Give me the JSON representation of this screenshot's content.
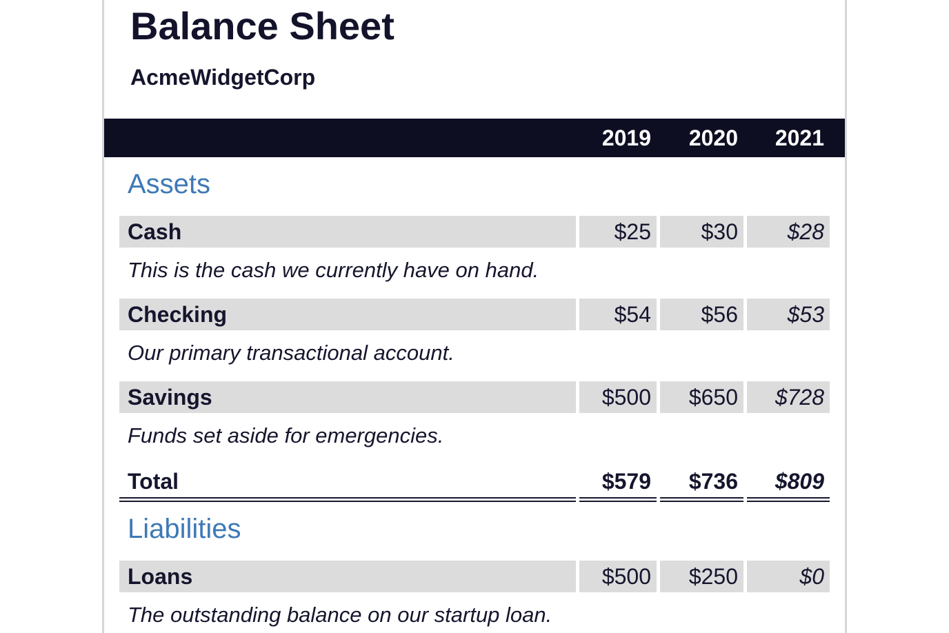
{
  "header": {
    "title": "Balance Sheet",
    "company": "AcmeWidgetCorp"
  },
  "table": {
    "years": [
      "2019",
      "2020",
      "2021"
    ],
    "sections": [
      {
        "name": "Assets",
        "rows": [
          {
            "label": "Cash",
            "values": [
              "$25",
              "$30",
              "$28"
            ],
            "description": "This is the cash we currently have on hand."
          },
          {
            "label": "Checking",
            "values": [
              "$54",
              "$56",
              "$53"
            ],
            "description": "Our primary transactional account."
          },
          {
            "label": "Savings",
            "values": [
              "$500",
              "$650",
              "$728"
            ],
            "description": "Funds set aside for emergencies."
          }
        ],
        "total": {
          "label": "Total",
          "values": [
            "$579",
            "$736",
            "$809"
          ]
        }
      },
      {
        "name": "Liabilities",
        "rows": [
          {
            "label": "Loans",
            "values": [
              "$500",
              "$250",
              "$0"
            ],
            "description": "The outstanding balance on our startup loan."
          }
        ]
      }
    ]
  },
  "colors": {
    "header_bar": "#0d0e22",
    "section_heading": "#3e79b6",
    "row_background": "#dcdcdd",
    "text": "#15152d",
    "page_edge": "#d6d6da"
  }
}
